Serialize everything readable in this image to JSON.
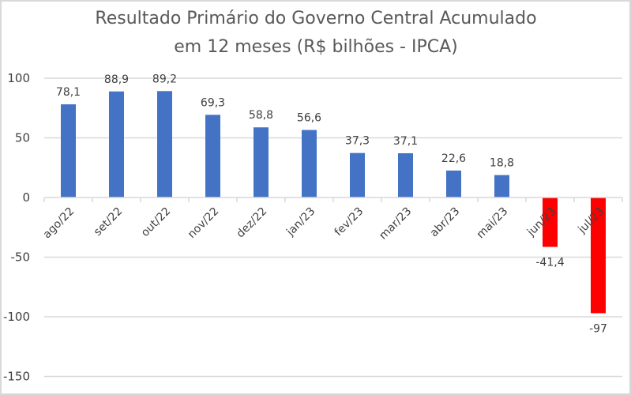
{
  "chart_data": {
    "type": "bar",
    "title_lines": [
      "Resultado Primário do Governo Central Acumulado",
      "em 12 meses (R$ bilhões - IPCA)"
    ],
    "categories": [
      "ago/22",
      "set/22",
      "out/22",
      "nov/22",
      "dez/22",
      "jan/23",
      "fev/23",
      "mar/23",
      "abr/23",
      "mai/23",
      "jun/23",
      "jul/23"
    ],
    "values": [
      78.1,
      88.9,
      89.2,
      69.3,
      58.8,
      56.6,
      37.3,
      37.1,
      22.6,
      18.8,
      -41.4,
      -97
    ],
    "data_labels": [
      "78,1",
      "88,9",
      "89,2",
      "69,3",
      "58,8",
      "56,6",
      "37,3",
      "37,1",
      "22,6",
      "18,8",
      "-41,4",
      "-97"
    ],
    "ylim": [
      -150,
      100
    ],
    "yticks": [
      100,
      50,
      0,
      -50,
      -100,
      -150
    ],
    "ytick_labels": [
      "100",
      "50",
      "0",
      "-50",
      "-100",
      "-150"
    ],
    "xlabel": "",
    "ylabel": "",
    "grid": true,
    "legend": "none",
    "colors": {
      "positive": "#4472c4",
      "negative": "#ff0000",
      "grid": "#d9d9d9",
      "text": "#404040"
    }
  }
}
